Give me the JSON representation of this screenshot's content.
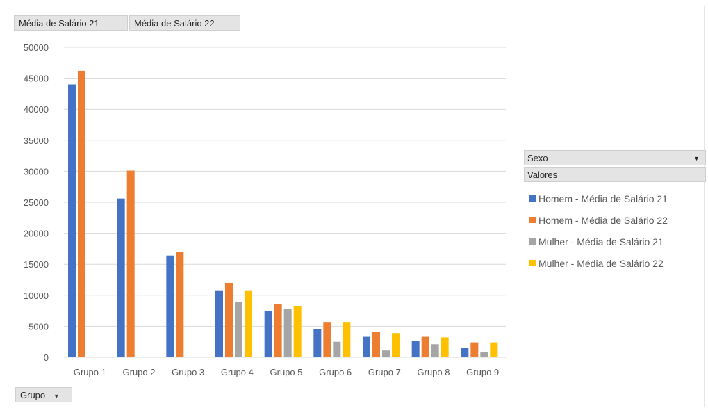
{
  "filters": {
    "values_buttons": [
      "Média de Salário 21",
      "Média de Salário 22"
    ],
    "axis_field": "Grupo",
    "legend_field": "Sexo",
    "legend_header": "Valores"
  },
  "colors": {
    "homem_21": "#4472c4",
    "homem_22": "#ed7d31",
    "mulher_21": "#a5a5a5",
    "mulher_22": "#ffc000",
    "gridline": "#d9d9d9",
    "axis_text": "#595959"
  },
  "chart_data": {
    "type": "bar",
    "categories": [
      "Grupo 1",
      "Grupo 2",
      "Grupo 3",
      "Grupo 4",
      "Grupo 5",
      "Grupo 6",
      "Grupo 7",
      "Grupo 8",
      "Grupo 9"
    ],
    "series": [
      {
        "name": "Homem - Média de Salário 21",
        "color": "#4472c4",
        "values": [
          44000,
          25600,
          16400,
          10800,
          7500,
          4500,
          3300,
          2600,
          1500
        ]
      },
      {
        "name": "Homem - Média de Salário 22",
        "color": "#ed7d31",
        "values": [
          46200,
          30100,
          17000,
          12000,
          8600,
          5700,
          4100,
          3300,
          2400
        ]
      },
      {
        "name": "Mulher - Média de Salário 21",
        "color": "#a5a5a5",
        "values": [
          null,
          null,
          null,
          8900,
          7800,
          2500,
          1100,
          2100,
          800
        ]
      },
      {
        "name": "Mulher - Média de Salário 22",
        "color": "#ffc000",
        "values": [
          null,
          null,
          null,
          10800,
          8300,
          5700,
          3900,
          3200,
          2400
        ]
      }
    ],
    "ylim": [
      0,
      50000
    ],
    "yticks": [
      0,
      5000,
      10000,
      15000,
      20000,
      25000,
      30000,
      35000,
      40000,
      45000,
      50000
    ],
    "ytick_labels": [
      "0",
      "5000",
      "10000",
      "15000",
      "20000",
      "25000",
      "30000",
      "35000",
      "40000",
      "45000",
      "50000"
    ],
    "grid": true,
    "legend_position": "right"
  }
}
